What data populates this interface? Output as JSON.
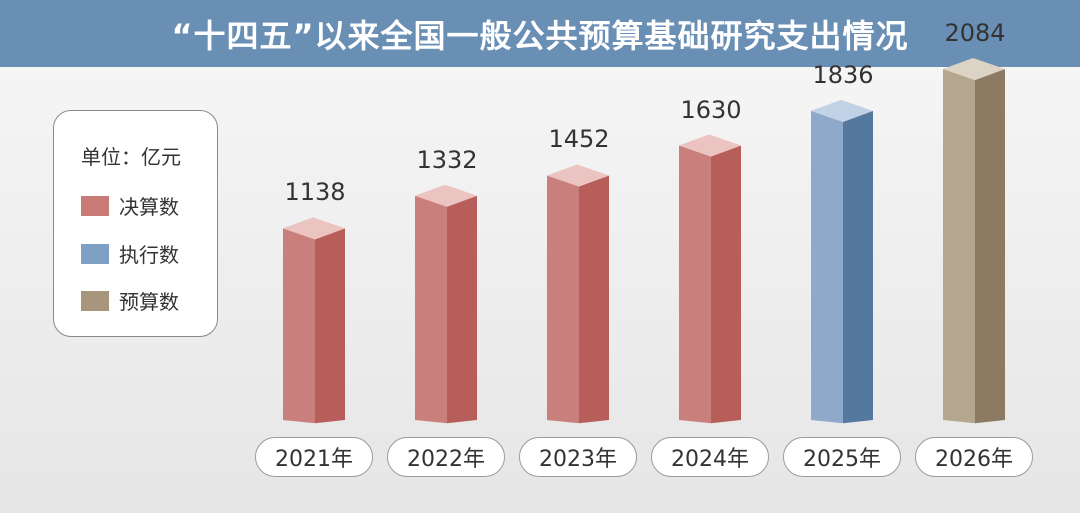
{
  "title": "“十四五”以来全国一般公共预算基础研究支出情况",
  "legend": {
    "unit": "单位：亿元",
    "items": [
      {
        "label": "决算数",
        "color": "#c97b78"
      },
      {
        "label": "执行数",
        "color": "#7fa0c4"
      },
      {
        "label": "预算数",
        "color": "#a8957e"
      }
    ]
  },
  "chart_data": {
    "type": "bar",
    "title": "“十四五”以来全国一般公共预算基础研究支出情况",
    "unit": "单位：亿元",
    "categories": [
      "2021年",
      "2022年",
      "2023年",
      "2024年",
      "2025年",
      "2026年"
    ],
    "values": [
      1138,
      1332,
      1452,
      1630,
      1836,
      2084
    ],
    "value_labels": [
      "1138",
      "1332",
      "1452",
      "1630",
      "1836",
      "2084"
    ],
    "series_type": [
      "决算数",
      "决算数",
      "决算数",
      "决算数",
      "执行数",
      "预算数"
    ],
    "colors": {
      "决算数": {
        "front": "#c9807c",
        "side": "#b85e5a",
        "top": "#ebc3c0"
      },
      "执行数": {
        "front": "#8fa9cb",
        "side": "#55789f",
        "top": "#c2d2e6"
      },
      "预算数": {
        "front": "#b5a690",
        "side": "#8c7a62",
        "top": "#ddd3c4"
      }
    },
    "legend_position": "left",
    "grid": false
  }
}
